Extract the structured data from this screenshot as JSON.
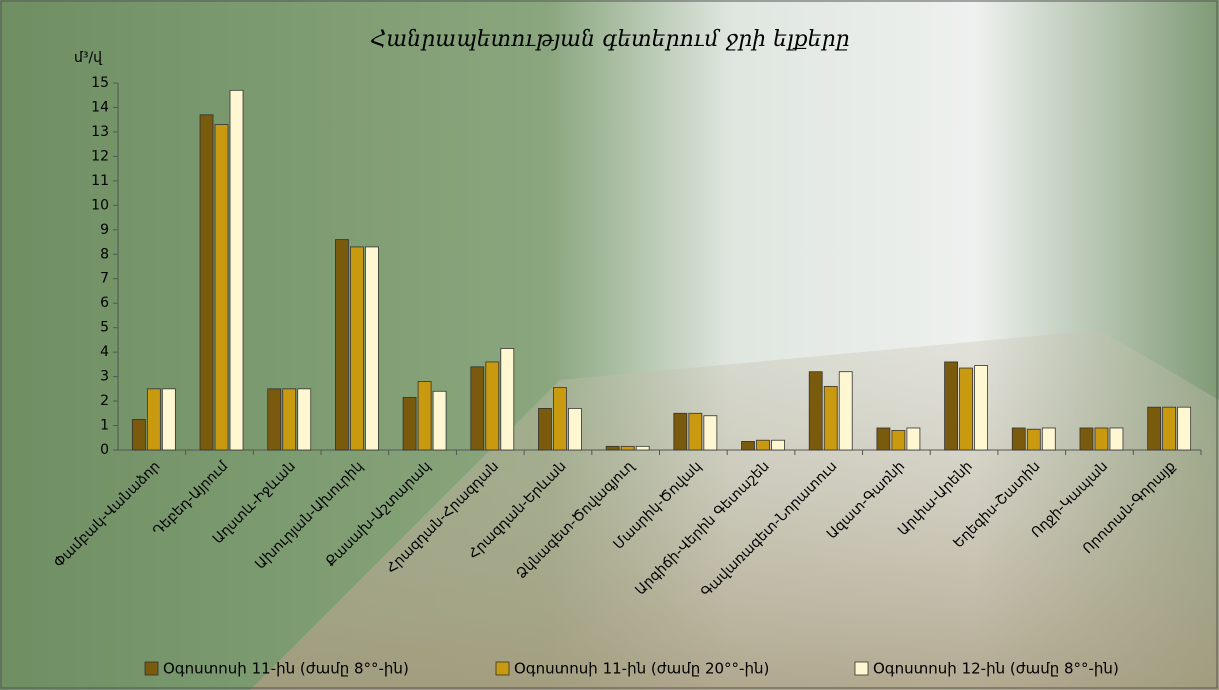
{
  "chart_data": {
    "type": "bar",
    "title": "Հանրապետության գետերում ջրի ելքերը",
    "y_label": "մ³/վ",
    "categories": [
      "Փամբակ-Վանաձոր",
      "Դեբեդ-Այրում",
      "Աղստև-Իջևան",
      "Ախուրյան-Ախուրիկ",
      "Քասախ-Աշտարակ",
      "Հրազդան-Հրազդան",
      "Հրազդան-Երևան",
      "Ձկնագետ-Ծովագյուղ",
      "Մասրիկ-Ծովակ",
      "Արգիճի-Վերին Գետաշեն",
      "Գավառագետ-Նորատուս",
      "Ազատ-Գառնի",
      "Արփա-Արենի",
      "Եղեգիս-Շատին",
      "Ողջի-Կապան",
      "Որոտան-Գորայք"
    ],
    "series": [
      {
        "name": "Օգոստոսի 11-ին (ժամը 8°°-ին)",
        "color": "#7a5a0c",
        "values": [
          1.25,
          13.7,
          2.5,
          8.6,
          2.15,
          3.4,
          1.7,
          0.15,
          1.5,
          0.35,
          3.2,
          0.9,
          3.6,
          0.9,
          0.9,
          1.75
        ]
      },
      {
        "name": "Օգոստոսի 11-ին (ժամը 20°°-ին)",
        "color": "#c9990f",
        "values": [
          2.5,
          13.3,
          2.5,
          8.3,
          2.8,
          3.6,
          2.55,
          0.15,
          1.5,
          0.4,
          2.6,
          0.8,
          3.35,
          0.85,
          0.9,
          1.75
        ]
      },
      {
        "name": "Օգոստոսի 12-ին (ժամը 8°°-ին)",
        "color": "#fff6d2",
        "values": [
          2.5,
          14.7,
          2.5,
          8.3,
          2.4,
          4.15,
          1.7,
          0.15,
          1.4,
          0.4,
          3.2,
          0.9,
          3.45,
          0.9,
          0.9,
          1.75
        ]
      }
    ],
    "ylim": [
      0,
      15
    ],
    "yticks": [
      0,
      1,
      2,
      3,
      4,
      5,
      6,
      7,
      8,
      9,
      10,
      11,
      12,
      13,
      14,
      15
    ]
  }
}
